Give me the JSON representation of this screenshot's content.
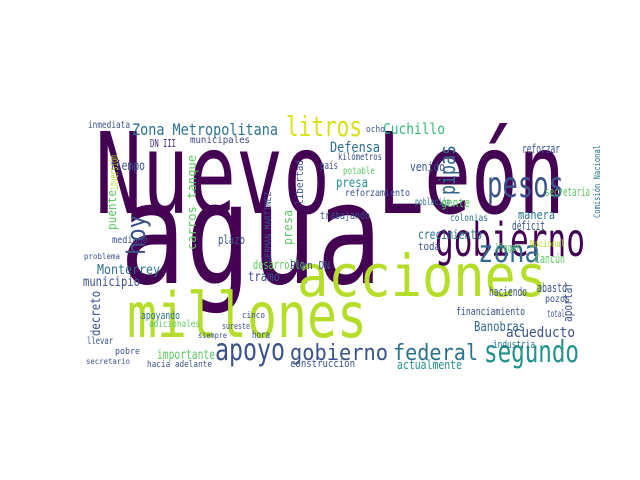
{
  "words": [
    {
      "text": "Nuevo León",
      "color": "#440154"
    },
    {
      "text": "agua",
      "color": "#440154"
    },
    {
      "text": "acciones",
      "color": "#b5de2b"
    },
    {
      "text": "millones",
      "color": "#b5de2b"
    },
    {
      "text": "gobierno",
      "color": "#440154"
    },
    {
      "text": "pesos",
      "color": "#3b528b"
    },
    {
      "text": "zona",
      "color": "#31688e"
    },
    {
      "text": "segundo",
      "color": "#21918c"
    },
    {
      "text": "apoyo",
      "color": "#3b528b"
    },
    {
      "text": "gobierno",
      "color": "#3b528b"
    },
    {
      "text": "federal",
      "color": "#2c728e"
    },
    {
      "text": "litros",
      "color": "#d8e219"
    },
    {
      "text": "hoy",
      "color": "#3b528b"
    },
    {
      "text": "pipas",
      "color": "#31688e"
    },
    {
      "text": "Zona Metropolitana",
      "color": "#2c728e"
    },
    {
      "text": "Cuchillo",
      "color": "#35b779"
    },
    {
      "text": "Defensa",
      "color": "#2c728e"
    },
    {
      "text": "presa",
      "color": "#21918c"
    },
    {
      "text": "municipales",
      "color": "#3e4a89"
    },
    {
      "text": "DN III",
      "color": "#472c7a"
    },
    {
      "text": "tiempo",
      "color": "#3b528b"
    },
    {
      "text": "Monterrey",
      "color": "#2c728e"
    },
    {
      "text": "municipio",
      "color": "#3b528b"
    },
    {
      "text": "decreto",
      "color": "#3b528b"
    },
    {
      "text": "plazo",
      "color": "#3b528b"
    },
    {
      "text": "tramo",
      "color": "#3b528b"
    },
    {
      "text": "desarrollo",
      "color": "#5ec962"
    },
    {
      "text": "Plan DN",
      "color": "#3b528b"
    },
    {
      "text": "importante",
      "color": "#5ec962"
    },
    {
      "text": "construcción",
      "color": "#3b528b"
    },
    {
      "text": "actualmente",
      "color": "#21918c"
    },
    {
      "text": "acueducto",
      "color": "#3b528b"
    },
    {
      "text": "Banobras",
      "color": "#31688e"
    },
    {
      "text": "industria",
      "color": "#2c728e"
    },
    {
      "text": "financiamiento",
      "color": "#3b528b"
    },
    {
      "text": "crecimiento",
      "color": "#2c728e"
    },
    {
      "text": "haciendo",
      "color": "#3b528b"
    },
    {
      "text": "abasto",
      "color": "#3b528b"
    },
    {
      "text": "Cancún",
      "color": "#5ec962"
    },
    {
      "text": "déficit",
      "color": "#3b528b"
    },
    {
      "text": "manera",
      "color": "#2c728e"
    },
    {
      "text": "secretaría",
      "color": "#5ec962"
    },
    {
      "text": "reforzar",
      "color": "#3b528b"
    },
    {
      "text": "venido",
      "color": "#3b528b"
    },
    {
      "text": "población",
      "color": "#2c728e"
    },
    {
      "text": "gente",
      "color": "#5ec962"
    },
    {
      "text": "trabajando",
      "color": "#3b528b"
    },
    {
      "text": "reforzamiento",
      "color": "#3b528b"
    },
    {
      "text": "apoyando",
      "color": "#2c728e"
    },
    {
      "text": "hacia adelante",
      "color": "#3b528b"
    },
    {
      "text": "adicionales",
      "color": "#5ec962"
    },
    {
      "text": "inversión",
      "color": "#b5de2b"
    },
    {
      "text": "puente",
      "color": "#5ec962"
    },
    {
      "text": "carros tanque",
      "color": "#5ec962"
    },
    {
      "text": "GERMAN MARTINEZ",
      "color": "#3b528b"
    },
    {
      "text": "presa",
      "color": "#5ec962"
    },
    {
      "text": "libertad",
      "color": "#3b528b"
    },
    {
      "text": "aportar",
      "color": "#3b528b"
    },
    {
      "text": "llegar",
      "color": "#5ec962"
    },
    {
      "text": "pozos",
      "color": "#3b528b"
    },
    {
      "text": "total",
      "color": "#3b528b"
    },
    {
      "text": "Comisión Nacional",
      "color": "#2c728e"
    },
    {
      "text": "kilómetros",
      "color": "#3b528b"
    },
    {
      "text": "potable",
      "color": "#5ec962"
    },
    {
      "text": "país",
      "color": "#3b528b"
    },
    {
      "text": "colonias",
      "color": "#2c728e"
    },
    {
      "text": "toda",
      "color": "#3b528b"
    },
    {
      "text": "Nacional",
      "color": "#b5de2b"
    },
    {
      "text": "llevar",
      "color": "#3b528b"
    },
    {
      "text": "pobre",
      "color": "#3b528b"
    },
    {
      "text": "inmediata",
      "color": "#3b528b"
    },
    {
      "text": "ocho",
      "color": "#3b528b"
    },
    {
      "text": "mediano",
      "color": "#3b528b"
    },
    {
      "text": "problema",
      "color": "#3b528b"
    },
    {
      "text": "secretario",
      "color": "#3b528b"
    },
    {
      "text": "siempre",
      "color": "#3b528b"
    },
    {
      "text": "hora",
      "color": "#3b528b"
    },
    {
      "text": "sureste",
      "color": "#3b528b"
    },
    {
      "text": "cinco",
      "color": "#3b528b"
    }
  ]
}
